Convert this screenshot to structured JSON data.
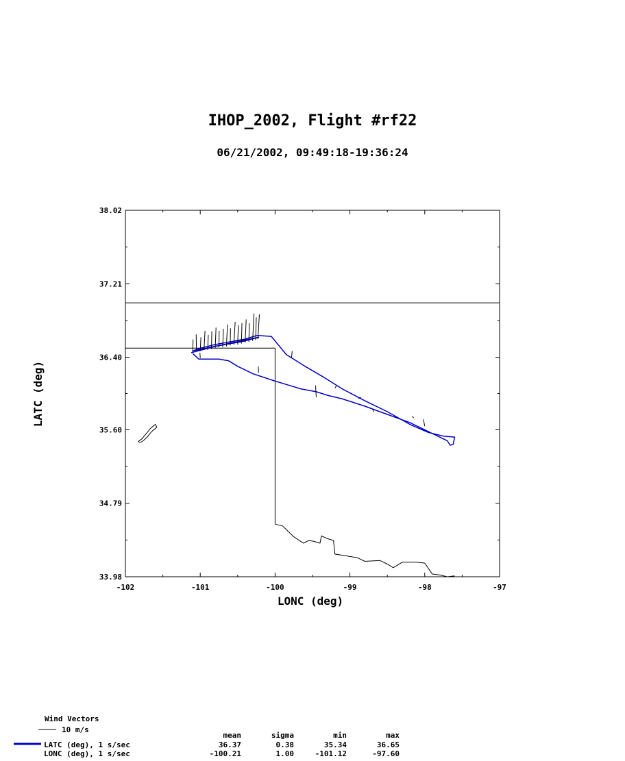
{
  "chart_data": {
    "type": "line",
    "title": "IHOP_2002, Flight #rf22",
    "subtitle": "06/21/2002, 09:49:18-19:36:24",
    "xlabel": "LONC (deg)",
    "ylabel": "LATC (deg)",
    "xlim": [
      -102,
      -97
    ],
    "ylim": [
      33.98,
      38.02
    ],
    "xticks": [
      -102,
      -101,
      -100,
      -99,
      -98,
      -97
    ],
    "xtick_labels": [
      "-102",
      "-101",
      "-100",
      "-99",
      "-98",
      "-97"
    ],
    "yticks": [
      33.98,
      34.79,
      35.6,
      36.4,
      37.21,
      38.02
    ],
    "ytick_labels": [
      "33.98",
      "34.79",
      "35.60",
      "36.40",
      "37.21",
      "38.02"
    ],
    "grid": false,
    "series": [
      {
        "name": "flight-track",
        "color": "#0000cc",
        "x": [
          -101.12,
          -100.98,
          -100.8,
          -100.6,
          -100.4,
          -100.22,
          -101.1,
          -101.0,
          -100.8,
          -100.6,
          -100.4,
          -100.24,
          -100.05,
          -99.85,
          -99.6,
          -99.35,
          -99.1,
          -98.8,
          -98.5,
          -98.2,
          -97.95,
          -97.75,
          -97.6,
          -97.62,
          -97.66,
          -97.7,
          -97.9,
          -98.2,
          -98.5,
          -98.8,
          -99.1,
          -99.3,
          -99.45,
          -99.65,
          -99.85,
          -100.05,
          -100.3,
          -100.5,
          -100.62,
          -100.75,
          -100.9,
          -101.02,
          -101.1
        ],
        "y": [
          36.45,
          36.48,
          36.52,
          36.55,
          36.58,
          36.62,
          36.47,
          36.5,
          36.54,
          36.57,
          36.6,
          36.64,
          36.63,
          36.43,
          36.3,
          36.18,
          36.05,
          35.92,
          35.8,
          35.66,
          35.57,
          35.53,
          35.52,
          35.44,
          35.43,
          35.48,
          35.56,
          35.68,
          35.77,
          35.86,
          35.94,
          35.98,
          36.02,
          36.05,
          36.1,
          36.15,
          36.22,
          36.3,
          36.36,
          36.38,
          36.38,
          36.38,
          36.44
        ]
      }
    ],
    "overlays": [
      {
        "name": "state-boundary",
        "color": "#000000",
        "x": [
          -102,
          -97
        ],
        "y": [
          37.0,
          37.0
        ]
      },
      {
        "name": "state-boundary",
        "color": "#000000",
        "x": [
          -102,
          -100.0,
          -100.0
        ],
        "y": [
          36.5,
          36.5,
          34.56
        ]
      },
      {
        "name": "red-river",
        "color": "#000000",
        "x": [
          -100.0,
          -99.9,
          -99.75,
          -99.62,
          -99.55,
          -99.48,
          -99.4,
          -99.38,
          -99.3,
          -99.22,
          -99.2,
          -99.05,
          -98.9,
          -98.8,
          -98.6,
          -98.5,
          -98.42,
          -98.3,
          -98.1,
          -98.0,
          -97.9,
          -97.8,
          -97.7,
          -97.6
        ],
        "y": [
          34.56,
          34.54,
          34.42,
          34.35,
          34.38,
          34.37,
          34.35,
          34.43,
          34.4,
          34.38,
          34.23,
          34.21,
          34.19,
          34.15,
          34.16,
          34.12,
          34.08,
          34.14,
          34.14,
          34.13,
          34.01,
          34.0,
          33.98,
          33.99
        ]
      },
      {
        "name": "lake",
        "color": "#000000",
        "x": [
          -101.83,
          -101.78,
          -101.72,
          -101.66,
          -101.6,
          -101.58,
          -101.65,
          -101.71,
          -101.76,
          -101.8,
          -101.83
        ],
        "y": [
          35.47,
          35.5,
          35.56,
          35.62,
          35.66,
          35.63,
          35.58,
          35.52,
          35.48,
          35.46,
          35.47
        ]
      }
    ],
    "wind_vectors": {
      "scale_label": "10 m/s",
      "samples": [
        {
          "x": -101.1,
          "y": 36.46,
          "u": 0.5,
          "v": 18
        },
        {
          "x": -101.05,
          "y": 36.47,
          "u": -0.5,
          "v": 24
        },
        {
          "x": -101.0,
          "y": 36.47,
          "u": 1.0,
          "v": 20
        },
        {
          "x": -100.95,
          "y": 36.48,
          "u": 1.5,
          "v": 28
        },
        {
          "x": -100.9,
          "y": 36.48,
          "u": 0.8,
          "v": 22
        },
        {
          "x": -100.85,
          "y": 36.49,
          "u": 0.5,
          "v": 26
        },
        {
          "x": -100.8,
          "y": 36.5,
          "u": 1.2,
          "v": 30
        },
        {
          "x": -100.75,
          "y": 36.51,
          "u": 0.3,
          "v": 24
        },
        {
          "x": -100.7,
          "y": 36.51,
          "u": 1.0,
          "v": 27
        },
        {
          "x": -100.65,
          "y": 36.52,
          "u": 1.5,
          "v": 32
        },
        {
          "x": -100.6,
          "y": 36.53,
          "u": 0.5,
          "v": 25
        },
        {
          "x": -100.55,
          "y": 36.54,
          "u": 1.8,
          "v": 33
        },
        {
          "x": -100.5,
          "y": 36.54,
          "u": 1.0,
          "v": 28
        },
        {
          "x": -100.45,
          "y": 36.55,
          "u": 0.8,
          "v": 30
        },
        {
          "x": -100.4,
          "y": 36.56,
          "u": 1.5,
          "v": 34
        },
        {
          "x": -100.35,
          "y": 36.57,
          "u": 0.6,
          "v": 27
        },
        {
          "x": -100.3,
          "y": 36.58,
          "u": 2.0,
          "v": 40
        },
        {
          "x": -100.26,
          "y": 36.59,
          "u": 1.0,
          "v": 33
        },
        {
          "x": -100.23,
          "y": 36.6,
          "u": 2.2,
          "v": 36
        },
        {
          "x": -101.0,
          "y": 36.39,
          "u": -0.5,
          "v": 8
        },
        {
          "x": -100.22,
          "y": 36.23,
          "u": -0.5,
          "v": 9
        },
        {
          "x": -99.78,
          "y": 36.4,
          "u": 1.0,
          "v": 9
        },
        {
          "x": -99.45,
          "y": 35.96,
          "u": -1.0,
          "v": 17
        },
        {
          "x": -99.2,
          "y": 36.06,
          "u": 2.0,
          "v": 3
        },
        {
          "x": -98.85,
          "y": 35.96,
          "u": -4.0,
          "v": -2
        },
        {
          "x": -98.68,
          "y": 35.8,
          "u": -2.0,
          "v": 4
        },
        {
          "x": -98.0,
          "y": 35.64,
          "u": -2.0,
          "v": 10
        },
        {
          "x": -98.15,
          "y": 35.73,
          "u": -1.5,
          "v": 3
        }
      ]
    }
  },
  "legend": {
    "wind_title": "Wind Vectors",
    "wind_scale": "10 m/s",
    "stats_headers": [
      "mean",
      "sigma",
      "min",
      "max"
    ],
    "rows": [
      {
        "label": "LATC (deg), 1 s/sec",
        "color": "#0000cc",
        "values": [
          "36.37",
          "0.38",
          "35.34",
          "36.65"
        ]
      },
      {
        "label": "LONC (deg), 1 s/sec",
        "color": "",
        "values": [
          "-100.21",
          "1.00",
          "-101.12",
          "-97.60"
        ]
      }
    ]
  }
}
